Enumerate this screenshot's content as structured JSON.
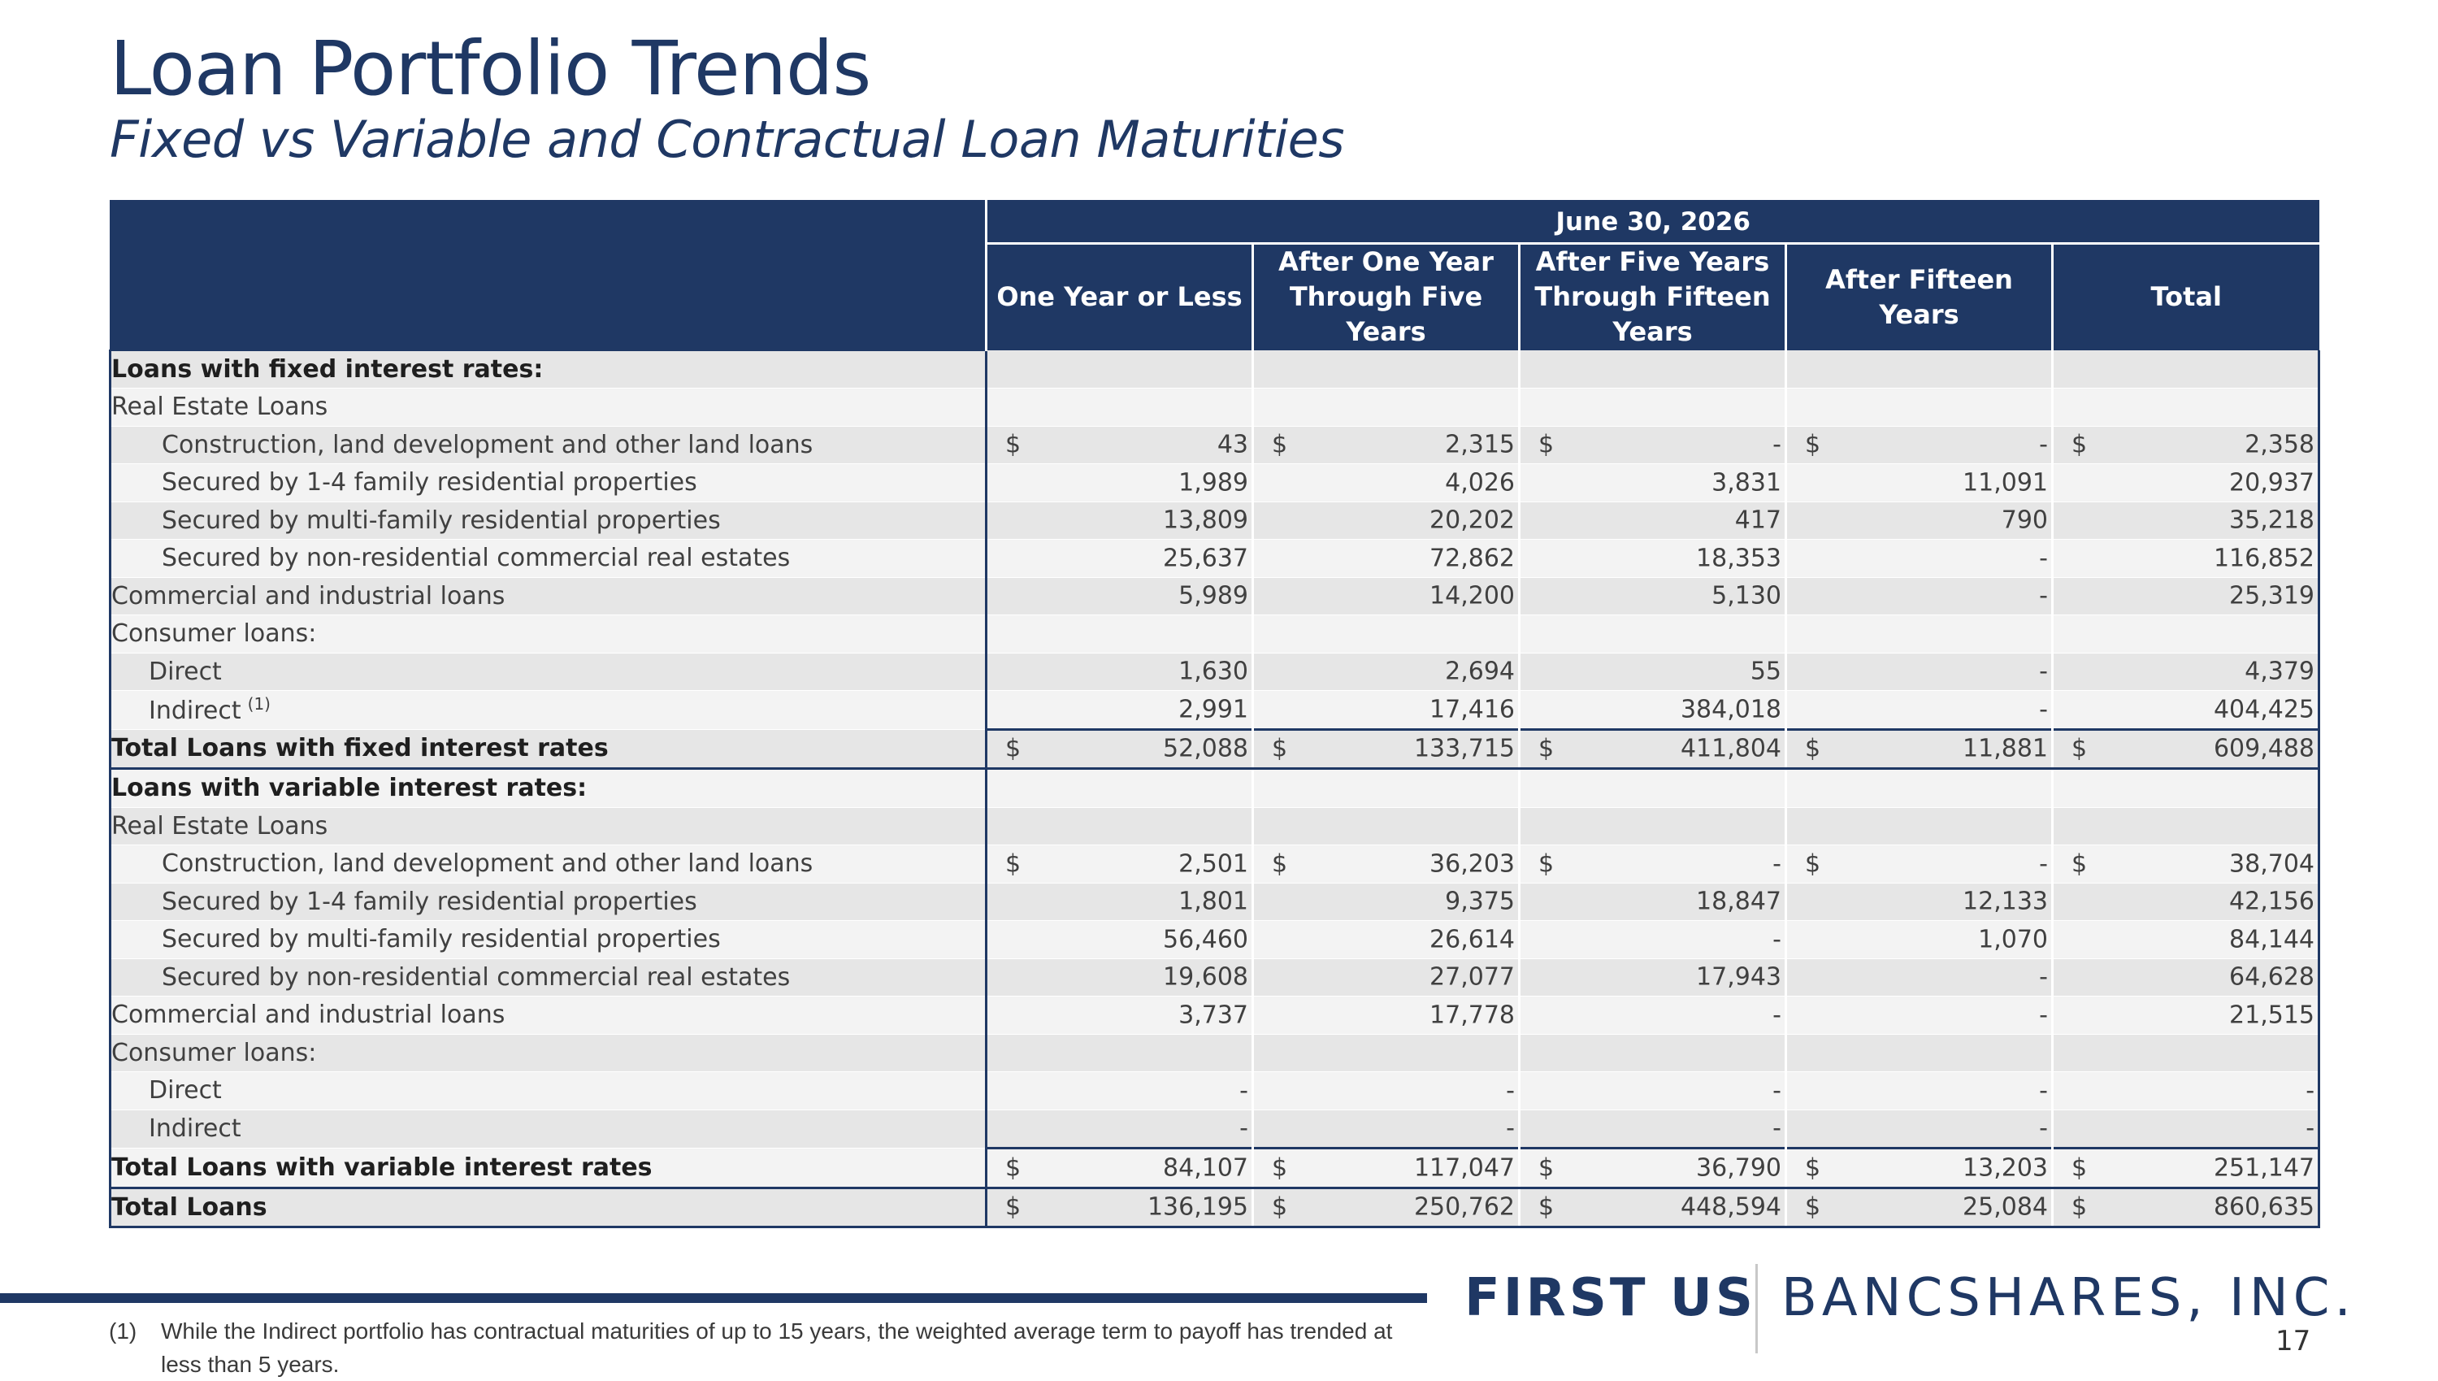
{
  "page": {
    "title": "Loan Portfolio Trends",
    "subtitle": "Fixed vs Variable and Contractual Loan Maturities",
    "page_number": "17"
  },
  "brand": {
    "bold": "FIRST US",
    "light": "BANCSHARES, INC."
  },
  "footnote": {
    "mark": "(1)",
    "text": "While the Indirect portfolio has contractual maturities of up to 15 years, the weighted average term to payoff has trended at less than 5 years."
  },
  "table": {
    "date_header": "June 30, 2026",
    "columns": [
      "One Year or Less",
      "After One Year Through Five Years",
      "After Five Years Through Fifteen Years",
      "After Fifteen Years",
      "Total"
    ],
    "rows": [
      {
        "label": "Loans with fixed interest rates:",
        "style": "section"
      },
      {
        "label": "Real Estate Loans"
      },
      {
        "label": "Construction, land development and other land loans",
        "indent": 2,
        "dollar": true,
        "values": [
          "43",
          "2,315",
          "-",
          "-",
          "2,358"
        ]
      },
      {
        "label": "Secured by 1-4 family residential properties",
        "indent": 2,
        "values": [
          "1,989",
          "4,026",
          "3,831",
          "11,091",
          "20,937"
        ]
      },
      {
        "label": "Secured by multi-family residential properties",
        "indent": 2,
        "values": [
          "13,809",
          "20,202",
          "417",
          "790",
          "35,218"
        ]
      },
      {
        "label": "Secured by non-residential commercial real estates",
        "indent": 2,
        "values": [
          "25,637",
          "72,862",
          "18,353",
          "-",
          "116,852"
        ]
      },
      {
        "label": "Commercial and industrial loans",
        "values": [
          "5,989",
          "14,200",
          "5,130",
          "-",
          "25,319"
        ]
      },
      {
        "label": "Consumer loans:"
      },
      {
        "label": "Direct",
        "indent": 1,
        "values": [
          "1,630",
          "2,694",
          "55",
          "-",
          "4,379"
        ]
      },
      {
        "label": "Indirect",
        "sup": "(1)",
        "indent": 1,
        "values": [
          "2,991",
          "17,416",
          "384,018",
          "-",
          "404,425"
        ]
      },
      {
        "label": "Total Loans with fixed interest rates",
        "style": "total",
        "dollar": true,
        "values": [
          "52,088",
          "133,715",
          "411,804",
          "11,881",
          "609,488"
        ]
      },
      {
        "label": "Loans with variable interest rates:",
        "style": "section"
      },
      {
        "label": "Real Estate Loans"
      },
      {
        "label": "Construction, land development and other land loans",
        "indent": 2,
        "dollar": true,
        "values": [
          "2,501",
          "36,203",
          "-",
          "-",
          "38,704"
        ]
      },
      {
        "label": "Secured by 1-4 family residential properties",
        "indent": 2,
        "values": [
          "1,801",
          "9,375",
          "18,847",
          "12,133",
          "42,156"
        ]
      },
      {
        "label": "Secured by multi-family residential properties",
        "indent": 2,
        "values": [
          "56,460",
          "26,614",
          "-",
          "1,070",
          "84,144"
        ]
      },
      {
        "label": "Secured by non-residential commercial real estates",
        "indent": 2,
        "values": [
          "19,608",
          "27,077",
          "17,943",
          "-",
          "64,628"
        ]
      },
      {
        "label": "Commercial and industrial loans",
        "values": [
          "3,737",
          "17,778",
          "-",
          "-",
          "21,515"
        ]
      },
      {
        "label": "Consumer loans:"
      },
      {
        "label": "Direct",
        "indent": 1,
        "values": [
          "-",
          "-",
          "-",
          "-",
          "-"
        ]
      },
      {
        "label": "Indirect",
        "indent": 1,
        "values": [
          "-",
          "-",
          "-",
          "-",
          "-"
        ]
      },
      {
        "label": "Total Loans with variable interest rates",
        "style": "total",
        "dollar": true,
        "values": [
          "84,107",
          "117,047",
          "36,790",
          "13,203",
          "251,147"
        ]
      },
      {
        "label": "Total Loans",
        "style": "grand",
        "dollar": true,
        "values": [
          "136,195",
          "250,762",
          "448,594",
          "25,084",
          "860,635"
        ]
      }
    ]
  }
}
